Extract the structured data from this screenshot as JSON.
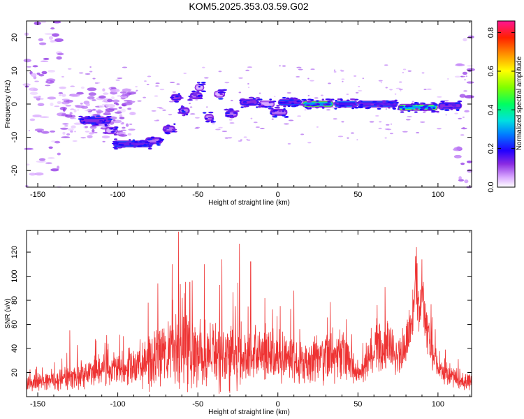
{
  "title": "KOM5.2025.353.03.59.G02",
  "chart_data": [
    {
      "type": "heatmap",
      "xlabel": "Height of straight line (km)",
      "ylabel": "Frequency (Hz)",
      "xlim": [
        -157,
        121
      ],
      "ylim": [
        -25,
        25
      ],
      "xticks": [
        -150,
        -100,
        -50,
        0,
        50,
        100
      ],
      "yticks": [
        -20,
        -10,
        0,
        10,
        20
      ],
      "colorbar": {
        "label": "Normalized spectral amplitude",
        "range": [
          0,
          0.86
        ],
        "ticks": [
          "0.0",
          "0.2",
          "0.4",
          "0.6",
          "0.8"
        ],
        "tick_values": [
          0.0,
          0.2,
          0.4,
          0.6,
          0.8
        ]
      },
      "segments": [
        {
          "x": [
            -124,
            -104
          ],
          "f": -5,
          "amp": 0.3
        },
        {
          "x": [
            -108,
            -100
          ],
          "f": -8,
          "amp": 0.1
        },
        {
          "x": [
            -103,
            -78
          ],
          "f": -12,
          "amp": 0.35
        },
        {
          "x": [
            -83,
            -72
          ],
          "f": -11,
          "amp": 0.2
        },
        {
          "x": [
            -72,
            -64
          ],
          "f": -7.5,
          "amp": 0.2
        },
        {
          "x": [
            -67,
            -60
          ],
          "f": 2,
          "amp": 0.25
        },
        {
          "x": [
            -62,
            -55
          ],
          "f": -2,
          "amp": 0.2
        },
        {
          "x": [
            -55,
            -47
          ],
          "f": 2.5,
          "amp": 0.2
        },
        {
          "x": [
            -52,
            -46
          ],
          "f": 5,
          "amp": 0.1
        },
        {
          "x": [
            -46,
            -40
          ],
          "f": -4,
          "amp": 0.15
        },
        {
          "x": [
            -40,
            -33
          ],
          "f": 3,
          "amp": 0.1
        },
        {
          "x": [
            -33,
            -25
          ],
          "f": -3,
          "amp": 0.2
        },
        {
          "x": [
            -24,
            -12
          ],
          "f": 0.5,
          "amp": 0.3
        },
        {
          "x": [
            -12,
            -2
          ],
          "f": 0,
          "amp": 0.12
        },
        {
          "x": [
            -5,
            6
          ],
          "f": -2.5,
          "amp": 0.2
        },
        {
          "x": [
            0,
            15
          ],
          "f": 0.5,
          "amp": 0.35
        },
        {
          "x": [
            15,
            35
          ],
          "f": 0,
          "amp": 0.7
        },
        {
          "x": [
            35,
            50
          ],
          "f": 0,
          "amp": 0.4
        },
        {
          "x": [
            50,
            75
          ],
          "f": 0,
          "amp": 0.35
        },
        {
          "x": [
            75,
            100
          ],
          "f": -1,
          "amp": 0.75
        },
        {
          "x": [
            100,
            115
          ],
          "f": -0.5,
          "amp": 0.3
        }
      ],
      "noise_regions": [
        {
          "x": [
            -157,
            -135
          ],
          "f": [
            -25,
            25
          ]
        },
        {
          "x": [
            -135,
            -90
          ],
          "f": [
            -10,
            5
          ]
        },
        {
          "x": [
            112,
            121
          ],
          "f": [
            -25,
            25
          ]
        }
      ]
    },
    {
      "type": "line",
      "xlabel": "Height of straight line (km)",
      "ylabel": "SNR (v/v)",
      "xlim": [
        -157,
        121
      ],
      "ylim": [
        0,
        138
      ],
      "xticks": [
        -150,
        -100,
        -50,
        0,
        50,
        100
      ],
      "yticks": [
        20,
        40,
        60,
        80,
        100,
        120
      ],
      "series": [
        {
          "name": "SNR",
          "color": "#ee3333",
          "envelope": {
            "x": [
              -157,
              -140,
              -125,
              -110,
              -95,
              -80,
              -70,
              -62,
              -55,
              -45,
              -35,
              -25,
              -15,
              -5,
              5,
              15,
              25,
              35,
              45,
              50,
              55,
              62,
              70,
              78,
              85,
              90,
              95,
              100,
              110,
              121
            ],
            "mean": [
              12,
              14,
              18,
              22,
              24,
              30,
              35,
              38,
              38,
              36,
              36,
              34,
              36,
              34,
              32,
              30,
              33,
              36,
              30,
              18,
              25,
              45,
              40,
              35,
              75,
              80,
              45,
              22,
              16,
              12
            ],
            "spread": [
              8,
              10,
              14,
              16,
              18,
              28,
              32,
              40,
              38,
              32,
              34,
              34,
              30,
              28,
              24,
              22,
              26,
              28,
              20,
              8,
              16,
              26,
              24,
              20,
              28,
              26,
              22,
              12,
              10,
              8
            ]
          },
          "peaks": [
            {
              "x": -62,
              "y": 137
            },
            {
              "x": -66,
              "y": 110
            },
            {
              "x": -46,
              "y": 110
            },
            {
              "x": -24,
              "y": 127
            },
            {
              "x": -35,
              "y": 114
            },
            {
              "x": -17,
              "y": 112
            },
            {
              "x": -81,
              "y": 78
            },
            {
              "x": -75,
              "y": 94
            },
            {
              "x": -55,
              "y": 95
            },
            {
              "x": 67,
              "y": 91
            },
            {
              "x": 62,
              "y": 76
            },
            {
              "x": 86,
              "y": 116
            },
            {
              "x": 90,
              "y": 114
            },
            {
              "x": -130,
              "y": 55
            },
            {
              "x": 10,
              "y": 88
            }
          ]
        }
      ]
    }
  ]
}
